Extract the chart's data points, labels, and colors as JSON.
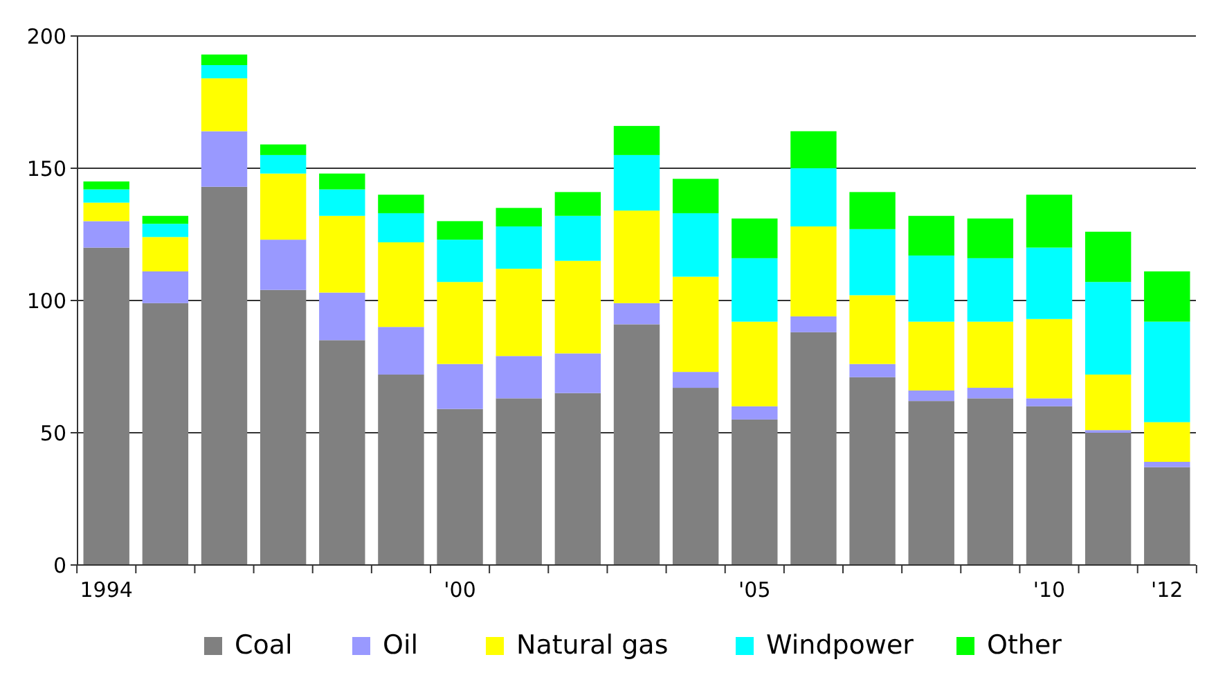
{
  "chart_data": {
    "type": "bar",
    "stacked": true,
    "categories": [
      "1994",
      null,
      null,
      null,
      null,
      null,
      "'00",
      null,
      null,
      null,
      null,
      "'05",
      null,
      null,
      null,
      null,
      "'10",
      null,
      "'12"
    ],
    "series": [
      {
        "name": "Coal",
        "color": "#808080",
        "values": [
          120,
          99,
          143,
          104,
          85,
          72,
          59,
          63,
          65,
          91,
          67,
          55,
          88,
          71,
          62,
          63,
          60,
          50,
          37
        ]
      },
      {
        "name": "Oil",
        "color": "#9999ff",
        "values": [
          10,
          12,
          21,
          19,
          18,
          18,
          17,
          16,
          15,
          8,
          6,
          5,
          6,
          5,
          4,
          4,
          3,
          1,
          2
        ]
      },
      {
        "name": "Natural gas",
        "color": "#ffff00",
        "values": [
          7,
          13,
          20,
          25,
          29,
          32,
          31,
          33,
          35,
          35,
          36,
          32,
          34,
          26,
          26,
          25,
          30,
          21,
          15
        ]
      },
      {
        "name": "Windpower",
        "color": "#00ffff",
        "values": [
          5,
          5,
          5,
          7,
          10,
          11,
          16,
          16,
          17,
          21,
          24,
          24,
          22,
          25,
          25,
          24,
          27,
          35,
          38
        ]
      },
      {
        "name": "Other",
        "color": "#00ff00",
        "values": [
          3,
          3,
          4,
          4,
          6,
          7,
          7,
          7,
          9,
          11,
          13,
          15,
          14,
          14,
          15,
          15,
          20,
          19,
          19
        ]
      }
    ],
    "ylim": [
      0,
      200
    ],
    "yticks": [
      0,
      50,
      100,
      150,
      200
    ],
    "grid": "y",
    "legend": "bottom"
  }
}
